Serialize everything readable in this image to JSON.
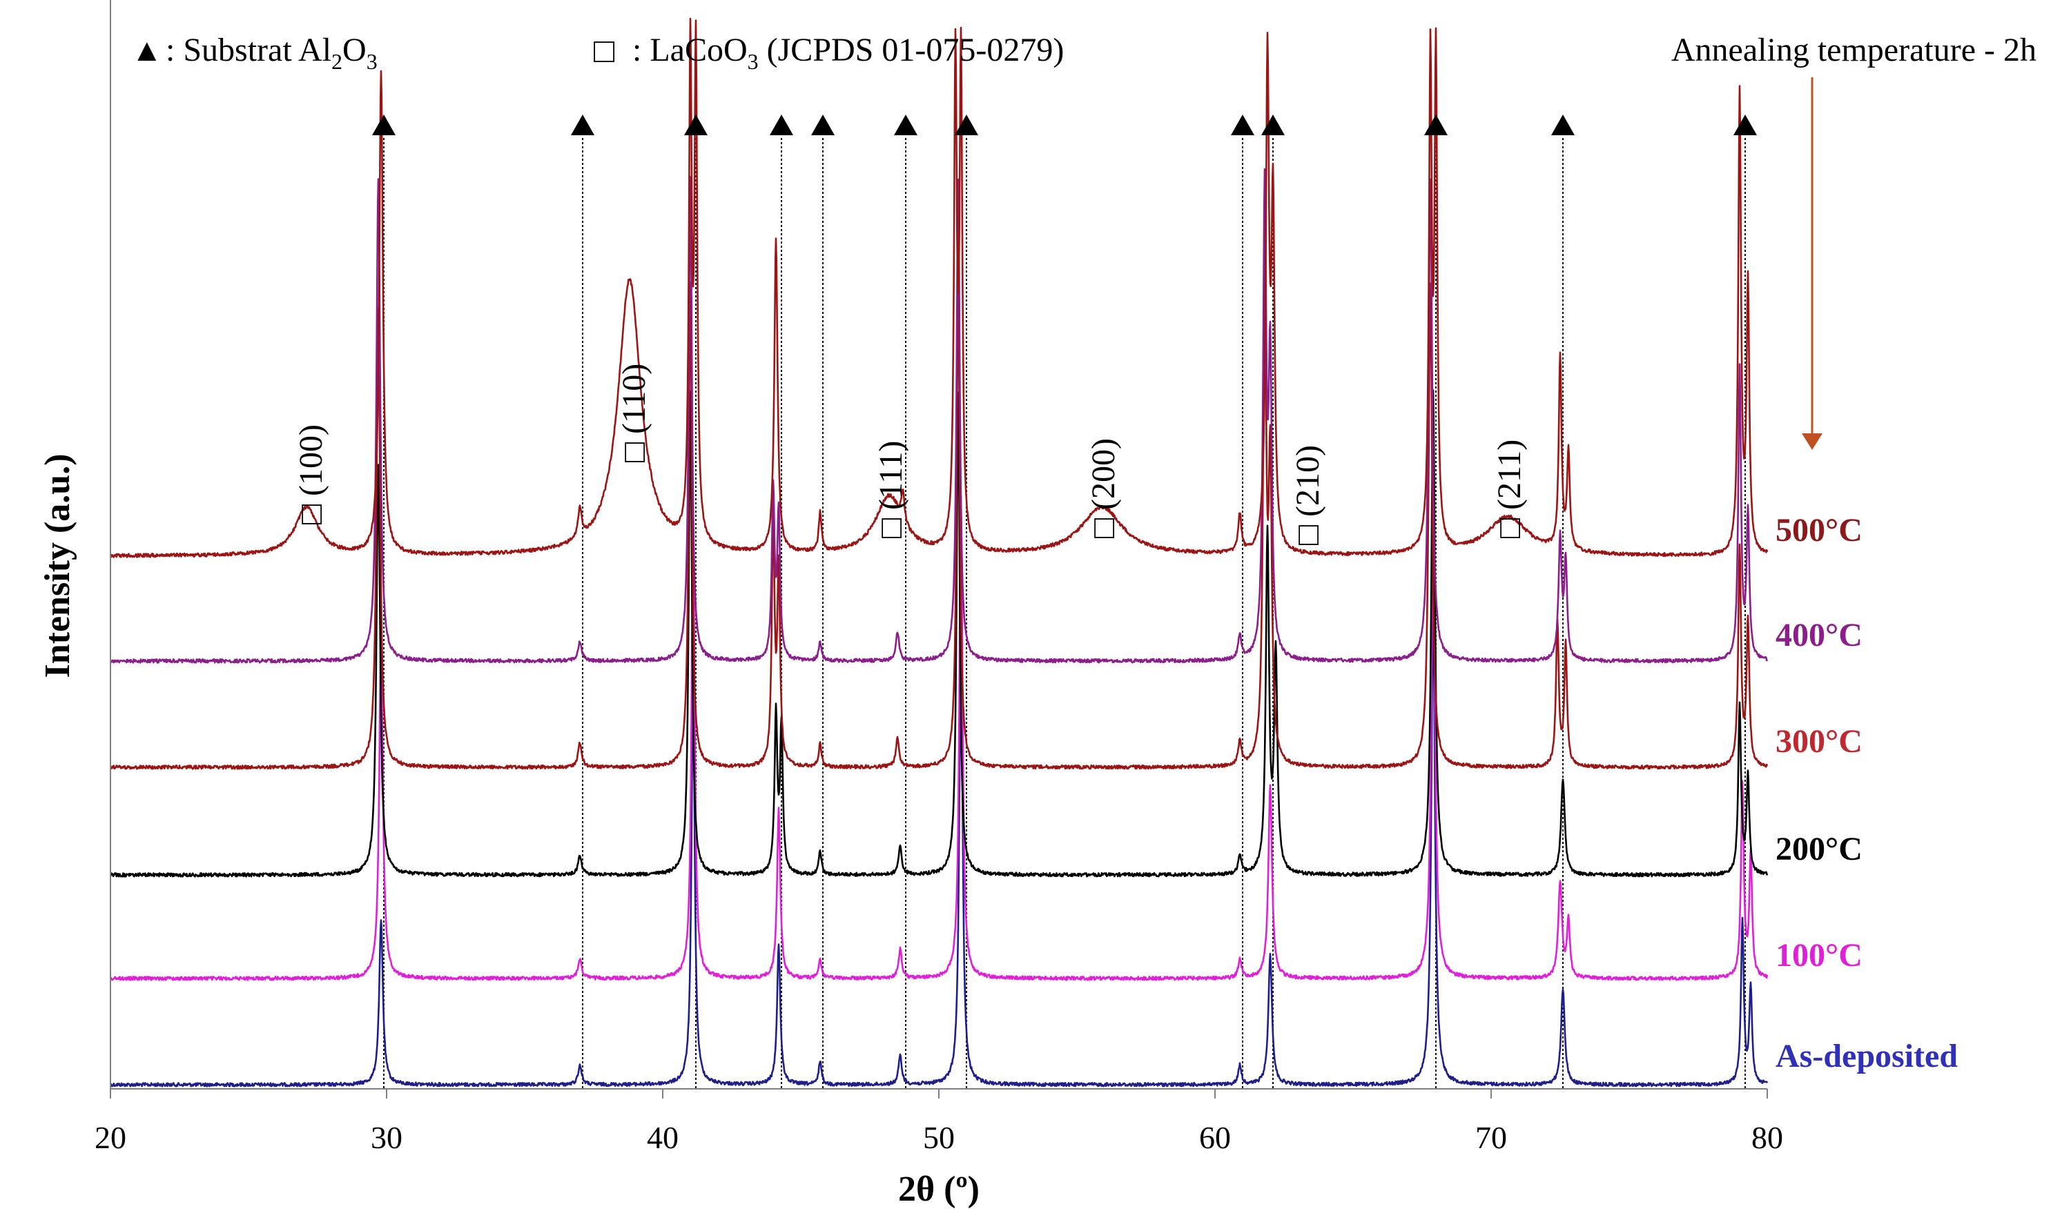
{
  "chart_data": {
    "type": "line",
    "title": "",
    "xlabel": "2θ (º)",
    "ylabel": "Intensity (a.u.)",
    "xlim": [
      20,
      80
    ],
    "x_ticks": [
      "20",
      "30",
      "40",
      "50",
      "60",
      "70",
      "80"
    ],
    "legend": {
      "substrate": {
        "symbol": "▲",
        "text": ": Substrat Al",
        "sub1": "2",
        "mid": "O",
        "sub2": "3"
      },
      "lacoo3": {
        "symbol": "□",
        "text": ": LaCoO",
        "sub": "3",
        "tail": " (JCPDS 01-075-0279)"
      }
    },
    "annotation": {
      "text": "Annealing temperature - 2h",
      "arrow_color": "#c0501f"
    },
    "substrate_peaks_2theta": [
      29.9,
      37.1,
      41.2,
      44.3,
      45.8,
      48.8,
      51.0,
      61.0,
      62.1,
      68.0,
      72.6,
      79.2
    ],
    "lacoo3_peaks": [
      {
        "hkl": "(100)",
        "two_theta": 27.2
      },
      {
        "hkl": "(110)",
        "two_theta": 38.9
      },
      {
        "hkl": "(111)",
        "two_theta": 48.2
      },
      {
        "hkl": "(200)",
        "two_theta": 55.9
      },
      {
        "hkl": "(210)",
        "two_theta": 63.3
      },
      {
        "hkl": "(211)",
        "two_theta": 70.6
      }
    ],
    "series": [
      {
        "name": "As-deposited",
        "color": "#1f1f8c",
        "label_color": "#3030b8",
        "peaks": [
          [
            29.8,
            0.34,
            0.08
          ],
          [
            37.0,
            0.04,
            0.08
          ],
          [
            41.1,
            0.85,
            0.07
          ],
          [
            44.2,
            0.29,
            0.07
          ],
          [
            45.7,
            0.05,
            0.06
          ],
          [
            48.6,
            0.06,
            0.07
          ],
          [
            50.8,
            1.0,
            0.07
          ],
          [
            60.9,
            0.04,
            0.07
          ],
          [
            62.0,
            0.27,
            0.08
          ],
          [
            67.9,
            1.0,
            0.08
          ],
          [
            72.6,
            0.2,
            0.08
          ],
          [
            79.1,
            0.34,
            0.06
          ],
          [
            79.4,
            0.2,
            0.06
          ]
        ]
      },
      {
        "name": "100°C",
        "color": "#e020d8",
        "label_color": "#e020d8",
        "peaks": [
          [
            29.8,
            0.7,
            0.08
          ],
          [
            37.0,
            0.04,
            0.08
          ],
          [
            41.1,
            0.95,
            0.07
          ],
          [
            44.2,
            0.35,
            0.07
          ],
          [
            45.7,
            0.04,
            0.06
          ],
          [
            48.6,
            0.06,
            0.07
          ],
          [
            50.8,
            1.0,
            0.07
          ],
          [
            60.9,
            0.04,
            0.07
          ],
          [
            62.0,
            0.4,
            0.08
          ],
          [
            67.9,
            1.0,
            0.08
          ],
          [
            72.5,
            0.2,
            0.08
          ],
          [
            72.8,
            0.12,
            0.06
          ],
          [
            79.1,
            0.4,
            0.06
          ],
          [
            79.4,
            0.25,
            0.06
          ]
        ]
      },
      {
        "name": "200°C",
        "color": "#000000",
        "label_color": "#000000",
        "peaks": [
          [
            29.7,
            0.85,
            0.08
          ],
          [
            37.0,
            0.04,
            0.08
          ],
          [
            41.0,
            1.0,
            0.07
          ],
          [
            44.1,
            0.33,
            0.06
          ],
          [
            44.3,
            0.3,
            0.06
          ],
          [
            45.7,
            0.05,
            0.06
          ],
          [
            48.6,
            0.06,
            0.07
          ],
          [
            50.7,
            1.0,
            0.07
          ],
          [
            60.9,
            0.04,
            0.07
          ],
          [
            61.9,
            0.7,
            0.07
          ],
          [
            62.2,
            0.45,
            0.07
          ],
          [
            67.9,
            1.0,
            0.08
          ],
          [
            72.6,
            0.2,
            0.08
          ],
          [
            79.0,
            0.35,
            0.06
          ],
          [
            79.3,
            0.2,
            0.06
          ]
        ]
      },
      {
        "name": "300°C",
        "color": "#9c1515",
        "label_color": "#c0282f",
        "peaks": [
          [
            29.7,
            0.95,
            0.08
          ],
          [
            37.0,
            0.05,
            0.08
          ],
          [
            41.0,
            1.0,
            0.07
          ],
          [
            44.0,
            0.5,
            0.06
          ],
          [
            44.2,
            0.4,
            0.06
          ],
          [
            45.7,
            0.05,
            0.06
          ],
          [
            48.5,
            0.06,
            0.07
          ],
          [
            50.7,
            1.0,
            0.07
          ],
          [
            60.9,
            0.05,
            0.07
          ],
          [
            61.8,
            1.0,
            0.07
          ],
          [
            62.0,
            0.6,
            0.07
          ],
          [
            67.8,
            1.0,
            0.08
          ],
          [
            72.4,
            0.3,
            0.06
          ],
          [
            72.7,
            0.25,
            0.06
          ],
          [
            79.0,
            0.45,
            0.06
          ],
          [
            79.3,
            0.3,
            0.06
          ]
        ]
      },
      {
        "name": "400°C",
        "color": "#8c1e8c",
        "label_color": "#8c1e8c",
        "peaks": [
          [
            29.7,
            1.0,
            0.08
          ],
          [
            37.0,
            0.04,
            0.08
          ],
          [
            41.0,
            1.0,
            0.07
          ],
          [
            44.0,
            0.35,
            0.06
          ],
          [
            44.2,
            0.3,
            0.06
          ],
          [
            45.7,
            0.04,
            0.06
          ],
          [
            48.5,
            0.06,
            0.07
          ],
          [
            50.7,
            1.0,
            0.07
          ],
          [
            60.9,
            0.05,
            0.07
          ],
          [
            61.8,
            0.95,
            0.07
          ],
          [
            62.0,
            0.6,
            0.07
          ],
          [
            67.8,
            1.0,
            0.08
          ],
          [
            72.5,
            0.25,
            0.07
          ],
          [
            72.7,
            0.2,
            0.06
          ],
          [
            79.0,
            0.6,
            0.06
          ],
          [
            79.3,
            0.3,
            0.06
          ]
        ]
      },
      {
        "name": "500°C",
        "color": "#9c1515",
        "label_color": "#8c1a1a",
        "peaks": [
          [
            27.1,
            0.1,
            0.5
          ],
          [
            29.8,
            1.0,
            0.08
          ],
          [
            37.0,
            0.06,
            0.08
          ],
          [
            38.8,
            0.57,
            0.5
          ],
          [
            41.0,
            1.0,
            0.06
          ],
          [
            41.2,
            1.0,
            0.06
          ],
          [
            44.1,
            0.65,
            0.07
          ],
          [
            45.7,
            0.08,
            0.06
          ],
          [
            48.2,
            0.12,
            0.6
          ],
          [
            48.7,
            0.06,
            0.07
          ],
          [
            50.6,
            1.0,
            0.06
          ],
          [
            50.8,
            1.0,
            0.06
          ],
          [
            55.9,
            0.1,
            0.9
          ],
          [
            60.9,
            0.08,
            0.07
          ],
          [
            61.9,
            1.0,
            0.07
          ],
          [
            62.1,
            0.7,
            0.07
          ],
          [
            67.8,
            1.0,
            0.06
          ],
          [
            68.0,
            1.0,
            0.06
          ],
          [
            70.6,
            0.08,
            0.9
          ],
          [
            72.5,
            0.4,
            0.06
          ],
          [
            72.8,
            0.2,
            0.06
          ],
          [
            79.0,
            0.95,
            0.06
          ],
          [
            79.3,
            0.55,
            0.06
          ]
        ]
      }
    ]
  }
}
